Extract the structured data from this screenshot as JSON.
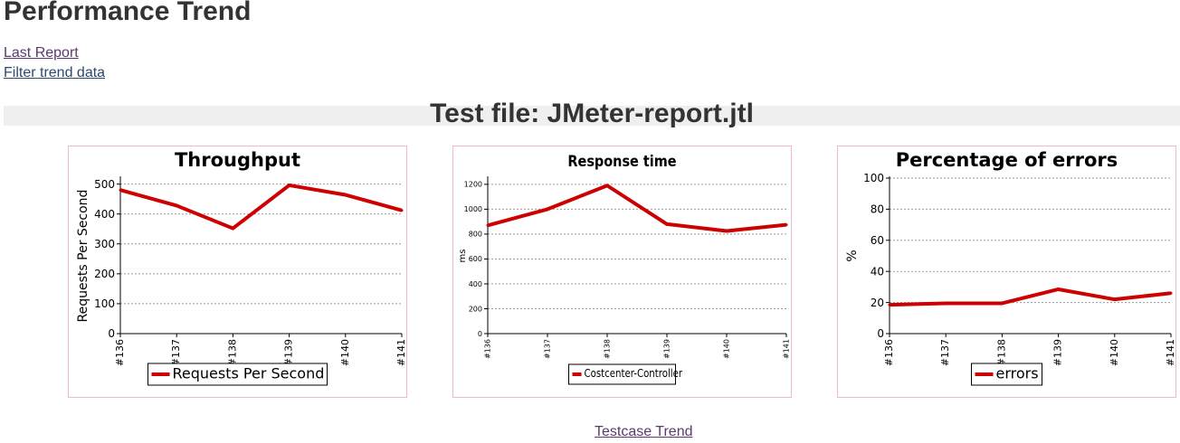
{
  "page": {
    "title": "Performance Trend",
    "links": {
      "last_report": "Last Report",
      "filter_trend": "Filter trend data"
    },
    "test_file": "Test file: JMeter-report.jtl",
    "testcase_trend": "Testcase Trend"
  },
  "chart_data": [
    {
      "type": "line",
      "title": "Throughput",
      "xlabel": "",
      "ylabel": "Requests Per Second",
      "categories": [
        "#136",
        "#137",
        "#138",
        "#139",
        "#140",
        "#141"
      ],
      "series": [
        {
          "name": "Requests Per Second",
          "values": [
            480,
            428,
            352,
            496,
            464,
            412
          ],
          "color": "#cc0000"
        }
      ],
      "ylim": [
        0,
        520
      ],
      "yticks": [
        0,
        100,
        200,
        300,
        400,
        500
      ],
      "grid": true,
      "legend": "bottom-center"
    },
    {
      "type": "line",
      "title": "Response time",
      "xlabel": "",
      "ylabel": "ms",
      "categories": [
        "#136",
        "#137",
        "#138",
        "#139",
        "#140",
        "#141"
      ],
      "series": [
        {
          "name": "Costcenter-Controller",
          "values": [
            870,
            1000,
            1190,
            880,
            825,
            875
          ],
          "color": "#cc0000"
        }
      ],
      "ylim": [
        0,
        1250
      ],
      "yticks": [
        0,
        200,
        400,
        600,
        800,
        1000,
        1200
      ],
      "grid": true,
      "legend": "bottom-center"
    },
    {
      "type": "line",
      "title": "Percentage of errors",
      "xlabel": "",
      "ylabel": "%",
      "categories": [
        "#136",
        "#137",
        "#138",
        "#139",
        "#140",
        "#141"
      ],
      "series": [
        {
          "name": "errors",
          "values": [
            18.5,
            19.5,
            19.5,
            28.5,
            22,
            26
          ],
          "color": "#cc0000"
        }
      ],
      "ylim": [
        0,
        100
      ],
      "yticks": [
        0,
        20,
        40,
        60,
        80,
        100
      ],
      "grid": true,
      "legend": "bottom-center"
    }
  ]
}
